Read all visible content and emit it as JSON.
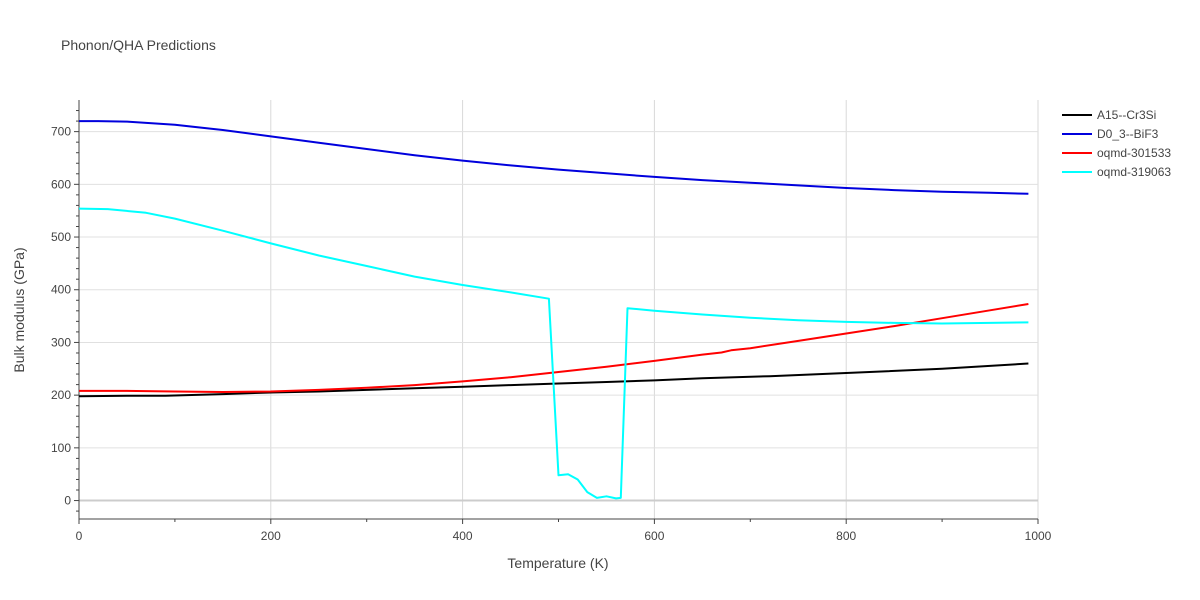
{
  "chart_data": {
    "type": "line",
    "title": "Phonon/QHA Predictions",
    "xlabel": "Temperature (K)",
    "ylabel": "Bulk modulus (GPa)",
    "xlim": [
      0,
      1000
    ],
    "ylim": [
      -35,
      760
    ],
    "xticks": [
      0,
      200,
      400,
      600,
      800,
      1000
    ],
    "yticks": [
      0,
      100,
      200,
      300,
      400,
      500,
      600,
      700
    ],
    "grid": true,
    "legend_position": "top-right",
    "series": [
      {
        "name": "A15--Cr3Si",
        "color": "#000000",
        "x": [
          0,
          50,
          90,
          150,
          200,
          250,
          300,
          350,
          400,
          450,
          500,
          550,
          600,
          650,
          720,
          800,
          900,
          990
        ],
        "y": [
          198,
          199,
          199,
          202,
          205,
          207,
          210,
          213,
          216,
          219,
          222,
          225,
          228,
          232,
          236,
          242,
          250,
          260
        ]
      },
      {
        "name": "D0_3--BiF3",
        "color": "#0000dd",
        "x": [
          0,
          20,
          50,
          100,
          150,
          200,
          250,
          300,
          350,
          400,
          450,
          500,
          550,
          600,
          650,
          700,
          750,
          800,
          850,
          900,
          950,
          990
        ],
        "y": [
          720,
          720,
          719,
          713,
          703,
          691,
          679,
          667,
          655,
          645,
          636,
          628,
          621,
          614,
          608,
          603,
          598,
          593,
          589,
          586,
          584,
          582
        ]
      },
      {
        "name": "oqmd-301533",
        "color": "#ff0000",
        "x": [
          0,
          50,
          100,
          150,
          200,
          250,
          300,
          350,
          400,
          450,
          500,
          550,
          600,
          650,
          670,
          680,
          700,
          750,
          800,
          850,
          900,
          950,
          990
        ],
        "y": [
          208,
          208,
          207,
          206,
          207,
          210,
          214,
          219,
          226,
          234,
          244,
          254,
          265,
          277,
          281,
          285,
          289,
          303,
          317,
          331,
          346,
          361,
          373
        ]
      },
      {
        "name": "oqmd-319063",
        "color": "#00ffff",
        "x": [
          0,
          30,
          70,
          100,
          150,
          200,
          250,
          300,
          350,
          400,
          450,
          490,
          500,
          510,
          520,
          530,
          540,
          550,
          560,
          565,
          572,
          600,
          650,
          700,
          750,
          800,
          850,
          900,
          950,
          990
        ],
        "y": [
          554,
          553,
          546,
          535,
          512,
          488,
          465,
          445,
          425,
          409,
          395,
          383,
          48,
          50,
          40,
          16,
          5,
          8,
          4,
          5,
          365,
          360,
          353,
          347,
          342,
          339,
          337,
          336,
          337,
          338
        ]
      }
    ]
  }
}
